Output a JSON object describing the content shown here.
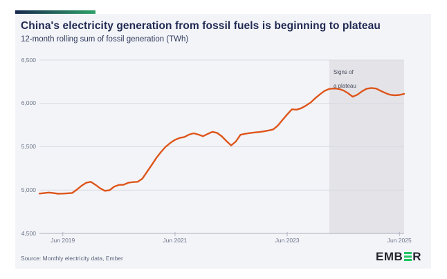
{
  "header": {
    "title": "China's electricity generation from fossil fuels is beginning to plateau",
    "subtitle": "12-month rolling sum of fossil generation (TWh)"
  },
  "chart_data": {
    "type": "line",
    "title": "China's electricity generation from fossil fuels is beginning to plateau",
    "subtitle": "12-month rolling sum of fossil generation (TWh)",
    "unit": "TWh",
    "ylim": [
      4500,
      6500
    ],
    "y_ticks": [
      4500,
      5000,
      5500,
      6000,
      6500
    ],
    "y_tick_labels": [
      "4,500",
      "5,000",
      "5,500",
      "6,000",
      "6,500"
    ],
    "x_tick_labels": [
      "Jun 2019",
      "Jun 2021",
      "Jun 2023",
      "Jun 2025"
    ],
    "x_tick_indices": [
      5,
      29,
      53,
      77
    ],
    "x_start_month": "2019-01",
    "x_end_month": "2025-07",
    "grid": true,
    "legend_position": "none",
    "series": [
      {
        "name": "Fossil generation, 12-month rolling sum",
        "color": "#de551a",
        "values": [
          4960,
          4965,
          4972,
          4965,
          4958,
          4960,
          4963,
          4967,
          5005,
          5050,
          5085,
          5095,
          5060,
          5020,
          4992,
          4998,
          5040,
          5060,
          5062,
          5085,
          5092,
          5095,
          5130,
          5210,
          5290,
          5370,
          5440,
          5500,
          5545,
          5580,
          5602,
          5612,
          5640,
          5655,
          5640,
          5622,
          5648,
          5672,
          5660,
          5620,
          5565,
          5515,
          5560,
          5638,
          5650,
          5658,
          5665,
          5670,
          5678,
          5688,
          5700,
          5745,
          5810,
          5873,
          5932,
          5928,
          5945,
          5975,
          6010,
          6060,
          6105,
          6145,
          6168,
          6172,
          6168,
          6150,
          6118,
          6078,
          6100,
          6140,
          6170,
          6178,
          6172,
          6145,
          6120,
          6100,
          6094,
          6098,
          6110
        ]
      }
    ],
    "annotation": {
      "line1": "Signs of",
      "line2": "a plateau",
      "region_start_index": 62
    },
    "colors": {
      "shaded_region": "#e4e4e8",
      "gridline": "#d7dae1",
      "axis_line": "#a8aebc",
      "tick_mark": "#b0b6c2"
    }
  },
  "footer": {
    "source": "Source: Monthly electricity data, Ember",
    "logo": {
      "prefix": "EMB",
      "suffix": "R"
    }
  },
  "theme": {
    "accent_gradient_start": "#16284e",
    "accent_gradient_end": "#2fa169",
    "card_bg": "#f3f4f8",
    "title_color": "#212a52",
    "logo_text_color": "#23262e",
    "logo_green": "#1ec564"
  }
}
